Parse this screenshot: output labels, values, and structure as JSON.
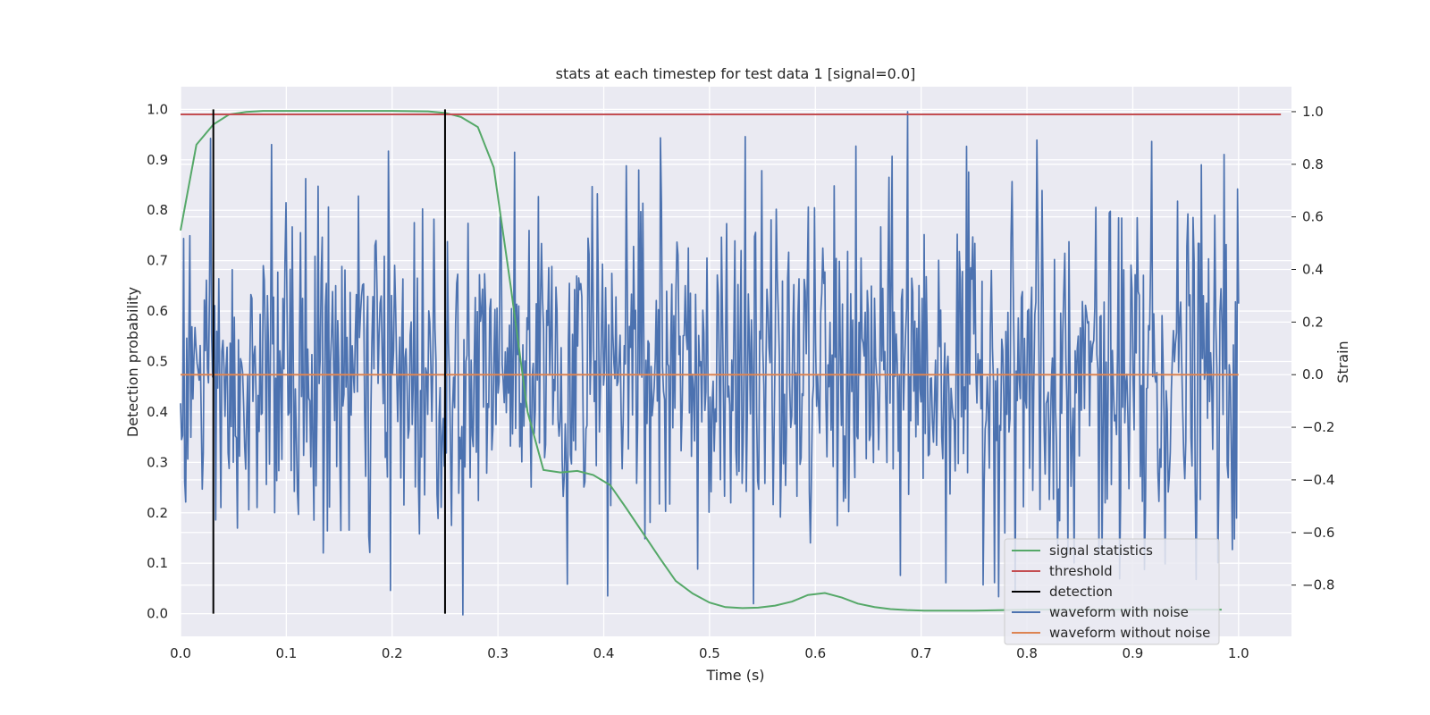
{
  "chart_data": {
    "type": "line",
    "title": "stats at each timestep for test data 1 [signal=0.0]",
    "xlabel": "Time (s)",
    "ylabel_left": "Detection probability",
    "ylabel_right": "Strain",
    "xlim": [
      0.0,
      1.05
    ],
    "ylim_left": [
      -0.045,
      1.045
    ],
    "ylim_right": [
      -0.995,
      1.095
    ],
    "x_ticks": [
      "0.0",
      "0.1",
      "0.2",
      "0.3",
      "0.4",
      "0.5",
      "0.6",
      "0.7",
      "0.8",
      "0.9",
      "1.0"
    ],
    "y_left_ticks": [
      "0.0",
      "0.1",
      "0.2",
      "0.3",
      "0.4",
      "0.5",
      "0.6",
      "0.7",
      "0.8",
      "0.9",
      "1.0"
    ],
    "y_right_ticks": [
      "−0.8",
      "−0.6",
      "−0.4",
      "−0.2",
      "0.0",
      "0.2",
      "0.4",
      "0.6",
      "0.8",
      "1.0"
    ],
    "grid": true,
    "legend_position": "lower-right",
    "series": [
      {
        "name": "signal statistics",
        "color": "#55a868",
        "axis": "left",
        "x": [
          0.0,
          0.015,
          0.031,
          0.046,
          0.062,
          0.078,
          0.1,
          0.15,
          0.2,
          0.234,
          0.25,
          0.265,
          0.281,
          0.296,
          0.312,
          0.328,
          0.343,
          0.359,
          0.375,
          0.39,
          0.406,
          0.421,
          0.437,
          0.453,
          0.468,
          0.484,
          0.5,
          0.515,
          0.531,
          0.546,
          0.562,
          0.578,
          0.593,
          0.609,
          0.625,
          0.64,
          0.656,
          0.671,
          0.687,
          0.703,
          0.75,
          0.8,
          0.85,
          0.9,
          0.95,
          0.984
        ],
        "values": [
          0.76,
          0.93,
          0.97,
          0.99,
          0.995,
          0.997,
          0.997,
          0.997,
          0.997,
          0.996,
          0.993,
          0.985,
          0.965,
          0.885,
          0.65,
          0.4,
          0.285,
          0.28,
          0.283,
          0.275,
          0.255,
          0.21,
          0.16,
          0.11,
          0.065,
          0.04,
          0.022,
          0.013,
          0.011,
          0.012,
          0.016,
          0.024,
          0.037,
          0.041,
          0.032,
          0.02,
          0.013,
          0.009,
          0.007,
          0.006,
          0.006,
          0.008,
          0.008,
          0.008,
          0.008,
          0.008
        ]
      },
      {
        "name": "threshold",
        "color": "#c44e52",
        "axis": "left",
        "x": [
          0.0,
          1.04
        ],
        "values": [
          0.99,
          0.99
        ]
      },
      {
        "name": "detection",
        "color": "#000000",
        "axis": "left",
        "x": [
          0.031,
          0.25
        ],
        "values": [
          1.0,
          1.0
        ]
      },
      {
        "name": "waveform with noise",
        "color": "#4c72b0",
        "axis": "right",
        "x_range": [
          0.0,
          1.0
        ],
        "amplitude": "approximately ±0.9, peak 1.0 at t≈0.687"
      },
      {
        "name": "waveform without noise",
        "color": "#dd8452",
        "axis": "right",
        "x": [
          0.0,
          1.0
        ],
        "values": [
          0.0,
          0.0
        ]
      }
    ]
  }
}
